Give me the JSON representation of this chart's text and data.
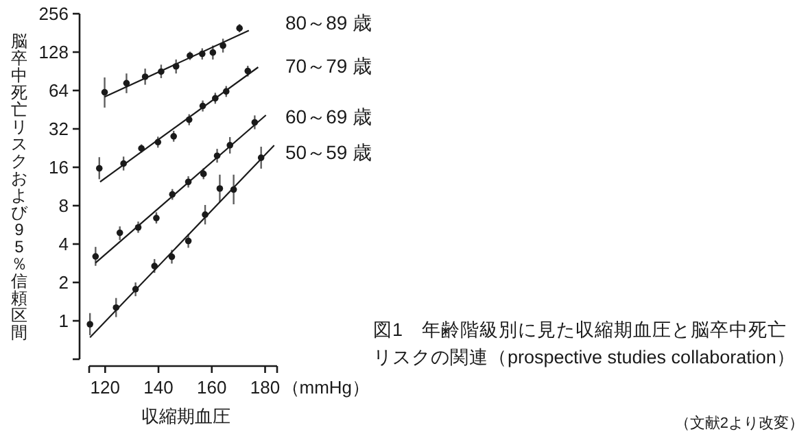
{
  "chart_data": {
    "type": "scatter",
    "title": "図1　年齢階級別に見た収縮期血圧と脳卒中死亡リスクの関連（prospective studies collaboration）",
    "xlabel": "収縮期血圧",
    "ylabel": "脳卒中死亡リスクおよび95％信頼区間",
    "annotations": [
      "（mmHg）",
      "（文献2より改変）"
    ],
    "log": "y",
    "xlim": [
      114,
      184.5
    ],
    "xticks": [
      {
        "value": 114,
        "label": null
      },
      120,
      140,
      160,
      180,
      {
        "value": 184.5,
        "label": null
      }
    ],
    "ylim": [
      0.5,
      256
    ],
    "yticks": [
      {
        "value": 0.5,
        "label": null
      },
      1,
      2,
      4,
      8,
      16,
      32,
      64,
      128,
      256
    ],
    "marker": "circle",
    "legend": false,
    "grid": false,
    "series": [
      {
        "name": "80～89 歳",
        "color": "#1a1a1a",
        "x": [
          119.8,
          128,
          135,
          141,
          146.6,
          151.8,
          156.4,
          160.4,
          164.2,
          170.4
        ],
        "values": [
          62,
          73,
          82,
          90,
          99,
          120,
          124,
          127,
          144,
          197
        ],
        "errors": [
          [
            47,
            81
          ],
          [
            61,
            87
          ],
          [
            71,
            95
          ],
          [
            80,
            102
          ],
          [
            87,
            112
          ],
          [
            111,
            129
          ],
          [
            112,
            137
          ],
          [
            112,
            144
          ],
          [
            127,
            163
          ],
          [
            183,
            212
          ]
        ]
      },
      {
        "type": "line",
        "marker": "none",
        "color": "#1a1a1a",
        "x": [
          119.8,
          173.9
        ],
        "values": [
          57,
          189
        ]
      },
      {
        "name": "70～79 歳",
        "color": "#1a1a1a",
        "x": [
          117.8,
          126.9,
          133.6,
          139.8,
          145.7,
          151.5,
          156.6,
          161.3,
          165.4,
          173.5
        ],
        "values": [
          15.7,
          17.1,
          22.5,
          25.2,
          28,
          37.8,
          48.4,
          55.6,
          62.9,
          91
        ],
        "errors": [
          [
            12.9,
            19.2
          ],
          [
            15.1,
            19.4
          ],
          [
            20.9,
            24.2
          ],
          [
            22.8,
            27.8
          ],
          [
            25.4,
            30.9
          ],
          [
            34.2,
            41.7
          ],
          [
            43.8,
            53.4
          ],
          [
            50.4,
            61.4
          ],
          [
            57,
            69.4
          ],
          [
            82.4,
            100
          ]
        ]
      },
      {
        "type": "line",
        "marker": "none",
        "color": "#1a1a1a",
        "x": [
          118.1,
          177.4
        ],
        "values": [
          12.3,
          97.5
        ]
      },
      {
        "name": "60～69 歳",
        "color": "#1a1a1a",
        "x": [
          116.4,
          125.5,
          132.4,
          139.2,
          145.2,
          151.2,
          156.9,
          162,
          166.8,
          176.1
        ],
        "values": [
          3.2,
          4.9,
          5.4,
          6.4,
          9.8,
          12.3,
          14.2,
          19.7,
          23.8,
          36
        ],
        "errors": [
          [
            2.7,
            3.8
          ],
          [
            4.3,
            5.5
          ],
          [
            4.9,
            6.0
          ],
          [
            5.8,
            7.1
          ],
          [
            8.9,
            10.8
          ],
          [
            11.1,
            13.6
          ],
          [
            12.9,
            15.7
          ],
          [
            17.4,
            22.3
          ],
          [
            20.5,
            27.6
          ],
          [
            31.8,
            40.8
          ]
        ]
      },
      {
        "type": "line",
        "marker": "none",
        "color": "#1a1a1a",
        "x": [
          116.4,
          180.3
        ],
        "values": [
          2.85,
          41
        ]
      },
      {
        "name": "50～59 歳",
        "color": "#1a1a1a",
        "x": [
          114.3,
          124.1,
          131.4,
          138.5,
          145,
          151.2,
          157.5,
          163,
          168.2,
          178.5
        ],
        "values": [
          0.94,
          1.27,
          1.77,
          2.69,
          3.18,
          4.23,
          6.8,
          10.9,
          10.7,
          19
        ],
        "errors": [
          [
            0.77,
            1.15
          ],
          [
            1.07,
            1.51
          ],
          [
            1.56,
            2.0
          ],
          [
            2.38,
            3.05
          ],
          [
            2.81,
            3.6
          ],
          [
            3.74,
            4.79
          ],
          [
            5.7,
            8.1
          ],
          [
            8.5,
            14
          ],
          [
            8.2,
            14
          ],
          [
            15.6,
            23.2
          ]
        ]
      },
      {
        "type": "line",
        "marker": "none",
        "color": "#1a1a1a",
        "x": [
          114.3,
          183.4
        ],
        "values": [
          0.74,
          23.8
        ]
      }
    ]
  }
}
